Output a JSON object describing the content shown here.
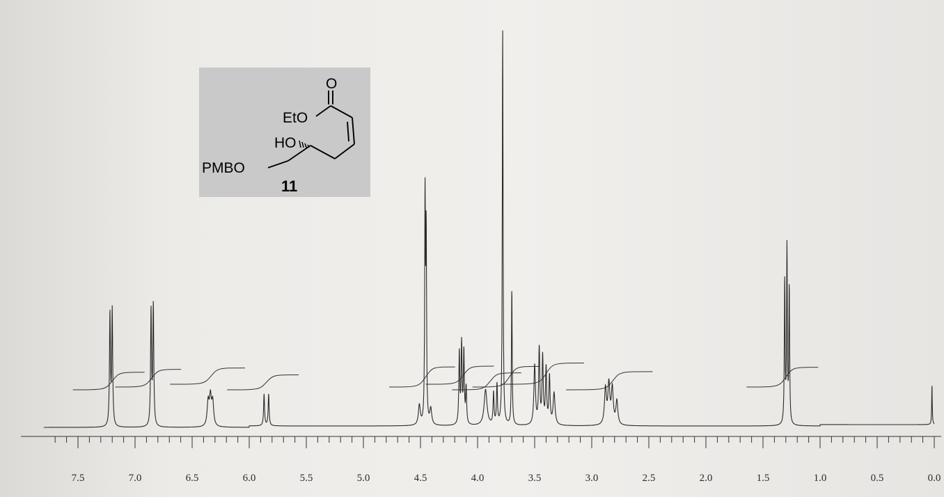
{
  "chart_data": {
    "type": "line",
    "title": "",
    "xlabel": "",
    "ylabel": "",
    "xlim": [
      7.8,
      0.0
    ],
    "x_axis_reversed": true,
    "grid": false,
    "ticks": [
      {
        "value": 7.5,
        "label": "7.5"
      },
      {
        "value": 7.0,
        "label": "7.0"
      },
      {
        "value": 6.5,
        "label": "6.5"
      },
      {
        "value": 6.0,
        "label": "6.0"
      },
      {
        "value": 5.5,
        "label": "5.5"
      },
      {
        "value": 5.0,
        "label": "5.0"
      },
      {
        "value": 4.5,
        "label": "4.5"
      },
      {
        "value": 4.0,
        "label": "4.0"
      },
      {
        "value": 3.5,
        "label": "3.5"
      },
      {
        "value": 3.0,
        "label": "3.0"
      },
      {
        "value": 2.5,
        "label": "2.5"
      },
      {
        "value": 2.0,
        "label": "2.0"
      },
      {
        "value": 1.5,
        "label": "1.5"
      },
      {
        "value": 1.0,
        "label": "1.0"
      },
      {
        "value": 0.5,
        "label": "0.5"
      },
      {
        "value": 0.0,
        "label": "0.0"
      }
    ],
    "peaks": [
      {
        "ppm": 7.22,
        "height": 0.28,
        "width": 0.005
      },
      {
        "ppm": 7.2,
        "height": 0.29,
        "width": 0.005
      },
      {
        "ppm": 6.86,
        "height": 0.29,
        "width": 0.005
      },
      {
        "ppm": 6.84,
        "height": 0.3,
        "width": 0.005
      },
      {
        "ppm": 6.36,
        "height": 0.06,
        "width": 0.01
      },
      {
        "ppm": 6.34,
        "height": 0.07,
        "width": 0.01
      },
      {
        "ppm": 6.32,
        "height": 0.06,
        "width": 0.01
      },
      {
        "ppm": 5.87,
        "height": 0.08,
        "width": 0.005
      },
      {
        "ppm": 5.83,
        "height": 0.08,
        "width": 0.005
      },
      {
        "ppm": 4.51,
        "height": 0.05,
        "width": 0.01
      },
      {
        "ppm": 4.46,
        "height": 0.56,
        "width": 0.004
      },
      {
        "ppm": 4.45,
        "height": 0.46,
        "width": 0.004
      },
      {
        "ppm": 4.41,
        "height": 0.04,
        "width": 0.01
      },
      {
        "ppm": 4.16,
        "height": 0.18,
        "width": 0.005
      },
      {
        "ppm": 4.14,
        "height": 0.2,
        "width": 0.005
      },
      {
        "ppm": 4.12,
        "height": 0.18,
        "width": 0.005
      },
      {
        "ppm": 4.1,
        "height": 0.09,
        "width": 0.005
      },
      {
        "ppm": 3.93,
        "height": 0.09,
        "width": 0.015
      },
      {
        "ppm": 3.86,
        "height": 0.08,
        "width": 0.005
      },
      {
        "ppm": 3.83,
        "height": 0.1,
        "width": 0.005
      },
      {
        "ppm": 3.78,
        "height": 0.99,
        "width": 0.004
      },
      {
        "ppm": 3.7,
        "height": 0.34,
        "width": 0.004
      },
      {
        "ppm": 3.5,
        "height": 0.15,
        "width": 0.008
      },
      {
        "ppm": 3.46,
        "height": 0.19,
        "width": 0.006
      },
      {
        "ppm": 3.43,
        "height": 0.17,
        "width": 0.006
      },
      {
        "ppm": 3.4,
        "height": 0.14,
        "width": 0.006
      },
      {
        "ppm": 3.37,
        "height": 0.12,
        "width": 0.006
      },
      {
        "ppm": 3.33,
        "height": 0.08,
        "width": 0.01
      },
      {
        "ppm": 2.88,
        "height": 0.09,
        "width": 0.01
      },
      {
        "ppm": 2.85,
        "height": 0.1,
        "width": 0.01
      },
      {
        "ppm": 2.82,
        "height": 0.09,
        "width": 0.01
      },
      {
        "ppm": 2.78,
        "height": 0.06,
        "width": 0.01
      },
      {
        "ppm": 1.31,
        "height": 0.36,
        "width": 0.004
      },
      {
        "ppm": 1.29,
        "height": 0.44,
        "width": 0.004
      },
      {
        "ppm": 1.27,
        "height": 0.34,
        "width": 0.004
      },
      {
        "ppm": 0.02,
        "height": 0.1,
        "width": 0.003
      }
    ],
    "integrals": [
      {
        "from": 7.3,
        "to": 7.1
      },
      {
        "from": 6.93,
        "to": 6.78
      },
      {
        "from": 6.45,
        "to": 6.22
      },
      {
        "from": 5.95,
        "to": 5.75
      },
      {
        "from": 4.53,
        "to": 4.38
      },
      {
        "from": 4.21,
        "to": 4.04
      },
      {
        "from": 3.98,
        "to": 3.8
      },
      {
        "from": 3.8,
        "to": 3.64
      },
      {
        "from": 3.55,
        "to": 3.25
      },
      {
        "from": 2.98,
        "to": 2.65
      },
      {
        "from": 1.4,
        "to": 1.2
      }
    ]
  },
  "structure": {
    "carbonyl_o": "O",
    "ester_group": "EtO",
    "hydroxyl": "HO",
    "pmb_ether": "PMBO",
    "compound_number": "11"
  },
  "colors": {
    "trace": "#2a2a2a",
    "structure_panel_bg": "#c9c9c9",
    "paper": "#ecebe8"
  }
}
